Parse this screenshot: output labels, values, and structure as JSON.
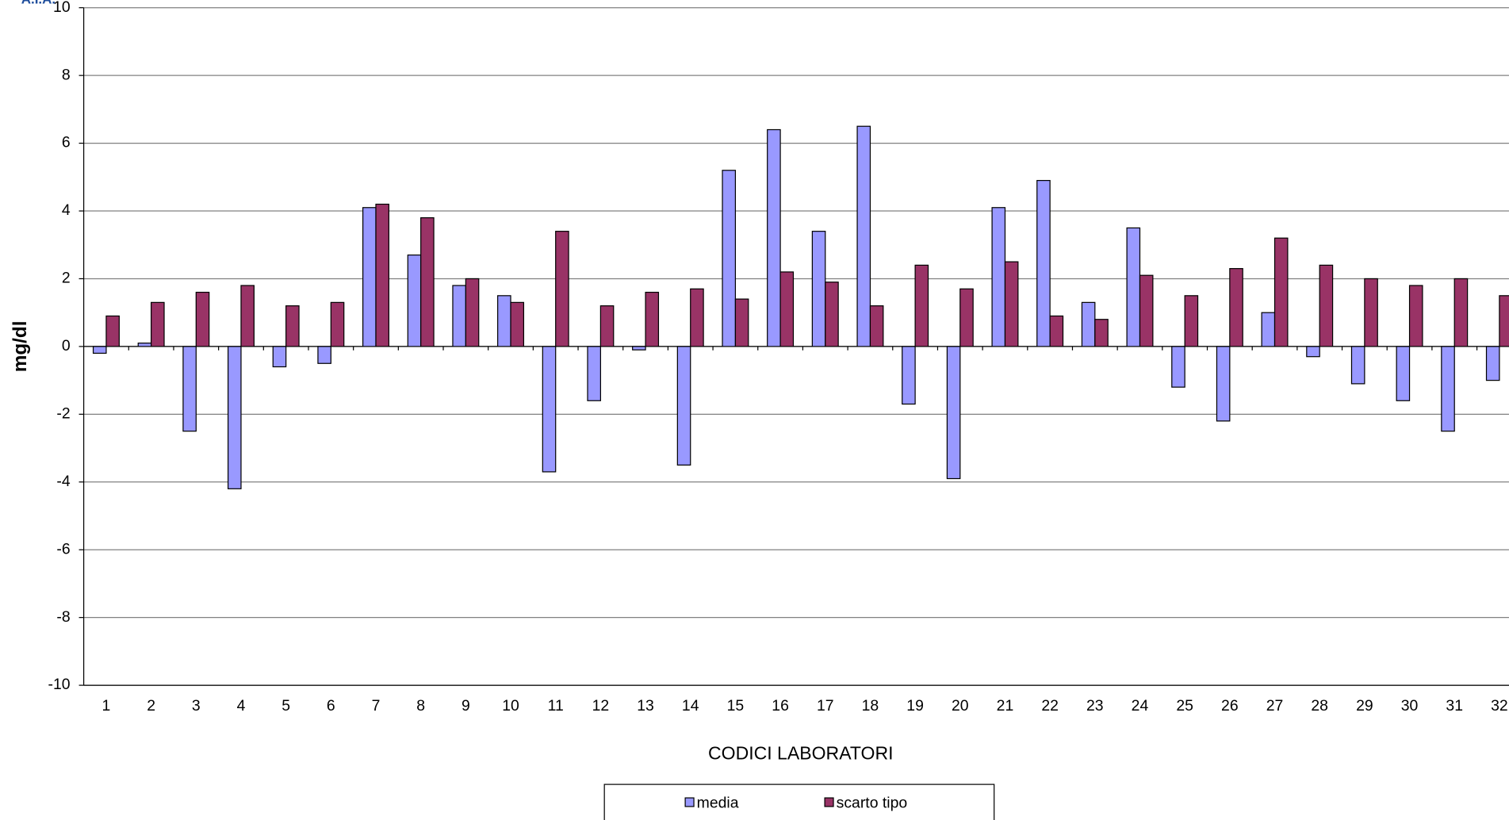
{
  "logo": "A.I.A.",
  "chart_data": {
    "type": "bar",
    "x_label": "CODICI LABORATORI",
    "y_label": "mg/dl",
    "categories": [
      "1",
      "2",
      "3",
      "4",
      "5",
      "6",
      "7",
      "8",
      "9",
      "10",
      "11",
      "12",
      "13",
      "14",
      "15",
      "16",
      "17",
      "18",
      "19",
      "20",
      "21",
      "22",
      "23",
      "24",
      "25",
      "26",
      "27",
      "28",
      "29",
      "30",
      "31",
      "32"
    ],
    "series": [
      {
        "name": "media",
        "color": "#9999ff",
        "values": [
          -0.2,
          0.1,
          -2.5,
          -4.2,
          -0.6,
          -0.5,
          4.1,
          2.7,
          1.8,
          1.5,
          -3.7,
          -1.6,
          -0.1,
          -3.5,
          5.2,
          6.4,
          3.4,
          6.5,
          -1.7,
          -3.9,
          4.1,
          4.9,
          1.3,
          3.5,
          -1.2,
          -2.2,
          1.0,
          -0.3,
          -1.1,
          -1.6,
          -2.5,
          -1.0
        ]
      },
      {
        "name": "scarto tipo",
        "color": "#993366",
        "values": [
          0.9,
          1.3,
          1.6,
          1.8,
          1.2,
          1.3,
          4.2,
          3.8,
          2.0,
          1.3,
          3.4,
          1.2,
          1.6,
          1.7,
          1.4,
          2.2,
          1.9,
          1.2,
          2.4,
          1.7,
          2.5,
          0.9,
          0.8,
          2.1,
          1.5,
          2.3,
          3.2,
          2.4,
          2.0,
          1.8,
          2.0,
          1.5
        ]
      }
    ],
    "ylim": [
      -10,
      10
    ],
    "yticks": [
      -10,
      -8,
      -6,
      -4,
      -2,
      0,
      2,
      4,
      6,
      8,
      10
    ],
    "grid": true,
    "legend": "bottom"
  }
}
